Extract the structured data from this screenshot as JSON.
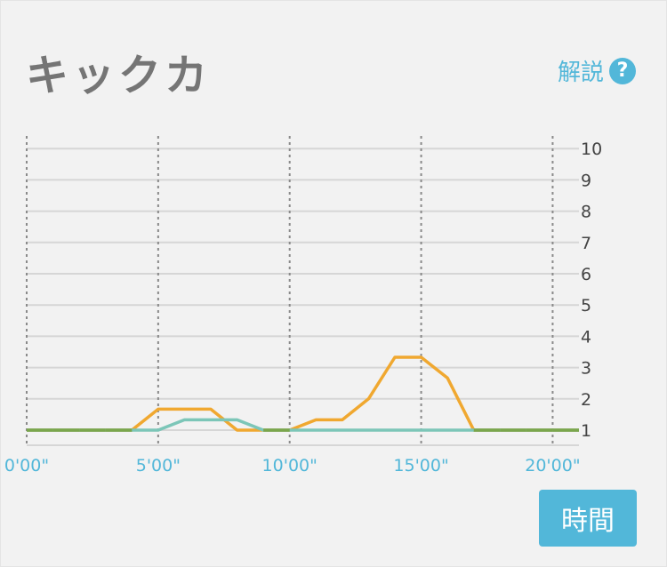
{
  "header": {
    "title": "キックカ",
    "help_label": "解説",
    "help_icon": "question-circle-icon",
    "help_glyph": "?"
  },
  "button": {
    "time_label": "時間"
  },
  "colors": {
    "accent": "#52b7d9",
    "series_orange": "#f0a830",
    "series_teal": "#7cc6b8",
    "overlap_green": "#7aa64c"
  },
  "chart_data": {
    "type": "line",
    "title": "",
    "xlabel": "",
    "ylabel": "",
    "x_ticks": [
      {
        "value": 0,
        "label": "0'00\""
      },
      {
        "value": 5,
        "label": "5'00\""
      },
      {
        "value": 10,
        "label": "10'00\""
      },
      {
        "value": 15,
        "label": "15'00\""
      },
      {
        "value": 20,
        "label": "20'00\""
      }
    ],
    "y_ticks": [
      1,
      2,
      3,
      4,
      5,
      6,
      7,
      8,
      9,
      10
    ],
    "xlim": [
      0,
      21
    ],
    "ylim": [
      0.5,
      10
    ],
    "grid": true,
    "x": [
      0,
      1,
      2,
      3,
      4,
      5,
      6,
      7,
      8,
      9,
      10,
      11,
      12,
      13,
      14,
      15,
      16,
      17,
      18,
      19,
      20,
      21
    ],
    "series": [
      {
        "color": "#f0a830",
        "values": [
          1,
          1,
          1,
          1,
          1,
          1.67,
          1.67,
          1.67,
          1,
          1,
          1,
          1.33,
          1.33,
          2,
          3.33,
          3.33,
          2.67,
          1,
          1,
          1,
          1,
          1
        ]
      },
      {
        "color": "#7cc6b8",
        "values": [
          1,
          1,
          1,
          1,
          1,
          1,
          1.33,
          1.33,
          1.33,
          1,
          1,
          1,
          1,
          1,
          1,
          1,
          1,
          1,
          1,
          1,
          1,
          1
        ]
      }
    ]
  }
}
